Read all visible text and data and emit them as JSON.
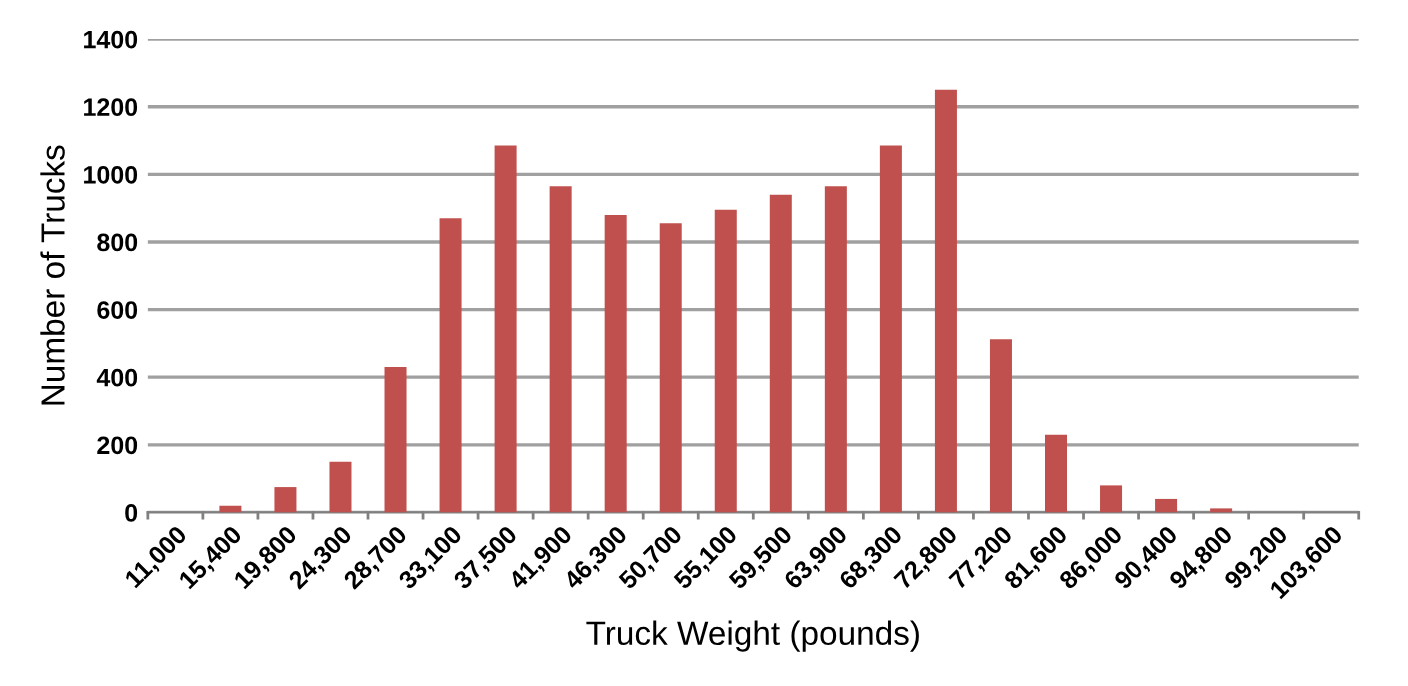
{
  "chart_data": {
    "type": "bar",
    "xlabel": "Truck Weight (pounds)",
    "ylabel": "Number of Trucks",
    "categories": [
      "11,000",
      "15,400",
      "19,800",
      "24,300",
      "28,700",
      "33,100",
      "37,500",
      "41,900",
      "46,300",
      "50,700",
      "55,100",
      "59,500",
      "63,900",
      "68,300",
      "72,800",
      "77,200",
      "81,600",
      "86,000",
      "90,400",
      "94,800",
      "99,200",
      "103,600"
    ],
    "values": [
      0,
      20,
      75,
      150,
      430,
      870,
      1085,
      965,
      880,
      855,
      895,
      940,
      965,
      1085,
      1250,
      512,
      230,
      80,
      40,
      12,
      0,
      0
    ],
    "color": "#c0504d",
    "ylim": [
      0,
      1400
    ],
    "yticks": [
      0,
      200,
      400,
      600,
      800,
      1000,
      1200,
      1400
    ],
    "grid": "y",
    "legend": false
  }
}
